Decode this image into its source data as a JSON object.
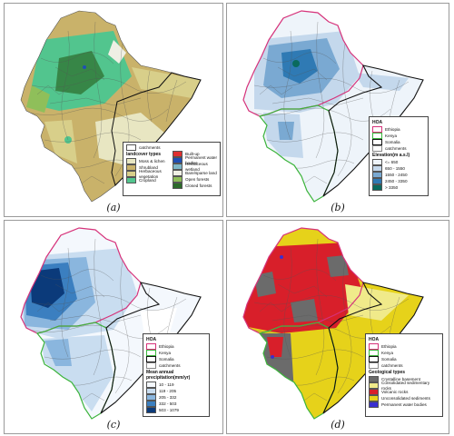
{
  "captions": [
    "(a)",
    "(b)",
    "(c)",
    "(d)"
  ],
  "legend_a": {
    "catchments": "catchments",
    "title": "landcover types",
    "items": [
      {
        "label": "Moss & lichen",
        "color": "#e8e6c2"
      },
      {
        "label": "Shrubland",
        "color": "#c9b26a"
      },
      {
        "label": "Herbaceous vegetation",
        "color": "#d8cf8a"
      },
      {
        "label": "Cropland",
        "color": "#52c58e"
      },
      {
        "label": "Built-up",
        "color": "#e03030"
      },
      {
        "label": "Permanent water bodies",
        "color": "#1f4fb4"
      },
      {
        "label": "Herbaceous wetland",
        "color": "#7fb8c8"
      },
      {
        "label": "Bare/sparse land",
        "color": "#efefe4"
      },
      {
        "label": "Open forests",
        "color": "#8fbf5a"
      },
      {
        "label": "Closed forests",
        "color": "#2c6b2a"
      }
    ]
  },
  "legend_b": {
    "title": "HOA",
    "borders": [
      {
        "label": "Ethiopia",
        "color": "#d6327a"
      },
      {
        "label": "Kenya",
        "color": "#3cb43c"
      },
      {
        "label": "Somalia",
        "color": "#111111"
      },
      {
        "label": "catchments",
        "color": "#888888"
      }
    ],
    "scale_title": "Elevation(m a.s.l)",
    "scale": [
      {
        "label": "<= 650",
        "color": "#eef4fa"
      },
      {
        "label": "650 - 1550",
        "color": "#c4d8ec"
      },
      {
        "label": "1550 - 2450",
        "color": "#7aa9d2"
      },
      {
        "label": "2450 - 3350",
        "color": "#2f7ab4"
      },
      {
        "label": "> 3350",
        "color": "#0a6a5e"
      }
    ]
  },
  "legend_c": {
    "title": "HOA",
    "borders": [
      {
        "label": "Ethiopia",
        "color": "#d6327a"
      },
      {
        "label": "Kenya",
        "color": "#3cb43c"
      },
      {
        "label": "Somalia",
        "color": "#111111"
      },
      {
        "label": "catchments",
        "color": "#888888"
      }
    ],
    "scale_title": "Mean annual precipitation(mm/yr)",
    "scale": [
      {
        "label": "10 - 119",
        "color": "#f4f8fd"
      },
      {
        "label": "119 - 205",
        "color": "#c9ddf0"
      },
      {
        "label": "205 - 332",
        "color": "#8ab6de"
      },
      {
        "label": "332 - 503",
        "color": "#3b7fc0"
      },
      {
        "label": "503 - 1079",
        "color": "#0b3a7a"
      }
    ]
  },
  "legend_d": {
    "title": "HOA",
    "borders": [
      {
        "label": "Ethiopia",
        "color": "#d6327a"
      },
      {
        "label": "Kenya",
        "color": "#3cb43c"
      },
      {
        "label": "Somalia",
        "color": "#111111"
      },
      {
        "label": "catchments",
        "color": "#888888"
      }
    ],
    "scale_title": "Geological types",
    "scale": [
      {
        "label": "Crystalline basement",
        "color": "#6b6b6b"
      },
      {
        "label": "Consolidated sedimentary rocks",
        "color": "#f0ea8a"
      },
      {
        "label": "Volcanic rocks",
        "color": "#d81f2a"
      },
      {
        "label": "Unconsolidated sediments",
        "color": "#e6d21a"
      },
      {
        "label": "Permanent water bodies",
        "color": "#3a2fd0"
      }
    ]
  }
}
